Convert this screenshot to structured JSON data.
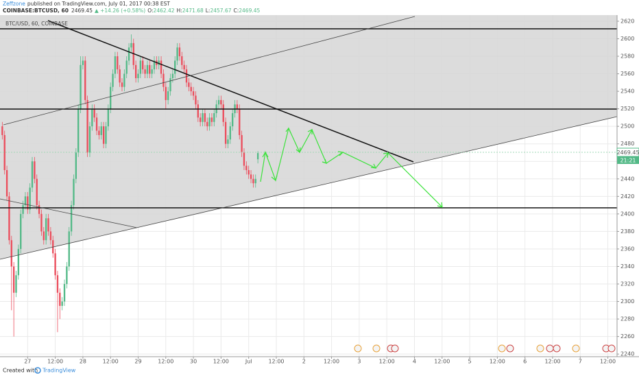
{
  "header": {
    "author": "Zeffzone",
    "published": "published on TradingView.com, July 01, 2017 00:38 EST",
    "symbol": "COINBASE:BTCUSD, 60",
    "last": "2469.45",
    "change": "▲ +14.26 (+0.58%)",
    "o_label": "O:",
    "o": "2462.42",
    "h_label": "H:",
    "h": "2471.68",
    "l_label": "L:",
    "l": "2457.67",
    "c_label": "C:",
    "c": "2469.45"
  },
  "legend": "BTC/USD, 60, COINBASE",
  "price_tag": "2469.45",
  "countdown": "21:21",
  "footer": {
    "created": "Created with",
    "brand": "TradingView"
  },
  "chart_data": {
    "type": "candlestick",
    "up_color": "#53b987",
    "down_color": "#eb4d5c",
    "xlim": [
      -12,
      256
    ],
    "ylim": [
      2237,
      2627
    ],
    "grid": true,
    "xticks": [
      {
        "value": 0,
        "label": "27"
      },
      {
        "value": 12,
        "label": "12:00"
      },
      {
        "value": 24,
        "label": "28"
      },
      {
        "value": 36,
        "label": "12:00"
      },
      {
        "value": 48,
        "label": "29"
      },
      {
        "value": 60,
        "label": "12:00"
      },
      {
        "value": 72,
        "label": "30"
      },
      {
        "value": 84,
        "label": "12:00"
      },
      {
        "value": 96,
        "label": "Jul"
      },
      {
        "value": 108,
        "label": "12:00"
      },
      {
        "value": 120,
        "label": "2"
      },
      {
        "value": 132,
        "label": "12:00"
      },
      {
        "value": 144,
        "label": "3"
      },
      {
        "value": 156,
        "label": "12:00"
      },
      {
        "value": 168,
        "label": "4"
      },
      {
        "value": 180,
        "label": "12:00"
      },
      {
        "value": 192,
        "label": "5"
      },
      {
        "value": 204,
        "label": "12:00"
      },
      {
        "value": 216,
        "label": "6"
      },
      {
        "value": 228,
        "label": "12:00"
      },
      {
        "value": 240,
        "label": "7"
      },
      {
        "value": 252,
        "label": "12:00"
      }
    ],
    "yticks": [
      2240,
      2260,
      2280,
      2300,
      2320,
      2340,
      2360,
      2380,
      2400,
      2420,
      2440,
      2460,
      2480,
      2500,
      2520,
      2540,
      2560,
      2580,
      2600,
      2620
    ],
    "x": [
      -11,
      -10,
      -9,
      -8,
      -7,
      -6,
      -5,
      -4,
      -3,
      -2,
      -1,
      0,
      1,
      2,
      3,
      4,
      5,
      6,
      7,
      8,
      9,
      10,
      11,
      12,
      13,
      14,
      15,
      16,
      17,
      18,
      19,
      20,
      21,
      22,
      23,
      24,
      25,
      26,
      27,
      28,
      29,
      30,
      31,
      32,
      33,
      34,
      35,
      36,
      37,
      38,
      39,
      40,
      41,
      42,
      43,
      44,
      45,
      46,
      47,
      48,
      49,
      50,
      51,
      52,
      53,
      54,
      55,
      56,
      57,
      58,
      59,
      60,
      61,
      62,
      63,
      64,
      65,
      66,
      67,
      68,
      69,
      70,
      71,
      72,
      73,
      74,
      75,
      76,
      77,
      78,
      79,
      80,
      81,
      82,
      83,
      84,
      85,
      86,
      87,
      88,
      89,
      90,
      91,
      92,
      93,
      94,
      95,
      96,
      97,
      98,
      99,
      100
    ],
    "open": [
      2500,
      2490,
      2450,
      2420,
      2370,
      2340,
      2310,
      2330,
      2360,
      2400,
      2410,
      2420,
      2405,
      2430,
      2460,
      2440,
      2410,
      2400,
      2380,
      2370,
      2395,
      2380,
      2370,
      2355,
      2330,
      2310,
      2295,
      2300,
      2320,
      2340,
      2380,
      2410,
      2440,
      2470,
      2520,
      2570,
      2575,
      2530,
      2470,
      2500,
      2520,
      2510,
      2495,
      2490,
      2500,
      2480,
      2500,
      2520,
      2545,
      2560,
      2580,
      2565,
      2550,
      2545,
      2560,
      2575,
      2590,
      2595,
      2570,
      2555,
      2560,
      2575,
      2565,
      2560,
      2570,
      2560,
      2565,
      2575,
      2570,
      2575,
      2560,
      2545,
      2530,
      2540,
      2555,
      2560,
      2575,
      2590,
      2580,
      2570,
      2565,
      2550,
      2545,
      2540,
      2535,
      2525,
      2510,
      2505,
      2515,
      2505,
      2500,
      2510,
      2505,
      2515,
      2525,
      2530,
      2525,
      2505,
      2480,
      2485,
      2500,
      2515,
      2525,
      2520,
      2490,
      2470,
      2455,
      2450,
      2445,
      2440,
      2435,
      2462.42
    ],
    "high": [
      2505,
      2495,
      2455,
      2425,
      2375,
      2345,
      2335,
      2365,
      2405,
      2415,
      2425,
      2425,
      2435,
      2465,
      2465,
      2445,
      2415,
      2405,
      2385,
      2400,
      2400,
      2385,
      2375,
      2360,
      2335,
      2315,
      2305,
      2325,
      2345,
      2385,
      2415,
      2445,
      2475,
      2525,
      2580,
      2580,
      2580,
      2535,
      2505,
      2525,
      2525,
      2515,
      2500,
      2505,
      2505,
      2505,
      2525,
      2550,
      2565,
      2585,
      2585,
      2570,
      2555,
      2565,
      2580,
      2595,
      2605,
      2600,
      2575,
      2565,
      2580,
      2580,
      2570,
      2575,
      2575,
      2570,
      2580,
      2580,
      2580,
      2580,
      2565,
      2550,
      2545,
      2560,
      2565,
      2580,
      2595,
      2595,
      2585,
      2575,
      2570,
      2555,
      2550,
      2545,
      2540,
      2530,
      2515,
      2520,
      2520,
      2510,
      2515,
      2515,
      2520,
      2530,
      2535,
      2535,
      2530,
      2510,
      2490,
      2505,
      2520,
      2530,
      2530,
      2525,
      2495,
      2475,
      2460,
      2455,
      2450,
      2445,
      2445,
      2471.68
    ],
    "low": [
      2485,
      2445,
      2415,
      2365,
      2290,
      2260,
      2305,
      2325,
      2355,
      2395,
      2405,
      2400,
      2400,
      2425,
      2435,
      2405,
      2395,
      2375,
      2365,
      2365,
      2375,
      2365,
      2350,
      2325,
      2265,
      2280,
      2290,
      2295,
      2315,
      2335,
      2375,
      2405,
      2435,
      2465,
      2515,
      2565,
      2525,
      2465,
      2465,
      2495,
      2505,
      2490,
      2485,
      2485,
      2475,
      2475,
      2495,
      2515,
      2540,
      2555,
      2560,
      2545,
      2540,
      2540,
      2555,
      2570,
      2585,
      2565,
      2550,
      2550,
      2555,
      2560,
      2555,
      2555,
      2555,
      2555,
      2560,
      2565,
      2565,
      2555,
      2540,
      2520,
      2525,
      2535,
      2550,
      2555,
      2570,
      2575,
      2565,
      2560,
      2545,
      2540,
      2535,
      2530,
      2520,
      2505,
      2500,
      2500,
      2500,
      2495,
      2495,
      2500,
      2500,
      2510,
      2520,
      2520,
      2500,
      2475,
      2475,
      2480,
      2495,
      2510,
      2515,
      2485,
      2465,
      2450,
      2445,
      2440,
      2435,
      2430,
      2430,
      2457.67
    ],
    "close": [
      2490,
      2450,
      2420,
      2370,
      2340,
      2310,
      2330,
      2360,
      2400,
      2410,
      2420,
      2405,
      2430,
      2460,
      2440,
      2410,
      2400,
      2380,
      2370,
      2395,
      2380,
      2370,
      2355,
      2330,
      2310,
      2295,
      2300,
      2320,
      2340,
      2380,
      2410,
      2440,
      2470,
      2520,
      2570,
      2575,
      2530,
      2470,
      2500,
      2520,
      2510,
      2495,
      2490,
      2500,
      2480,
      2500,
      2520,
      2545,
      2560,
      2580,
      2565,
      2550,
      2545,
      2560,
      2575,
      2590,
      2595,
      2570,
      2555,
      2560,
      2575,
      2565,
      2560,
      2570,
      2560,
      2565,
      2575,
      2570,
      2575,
      2560,
      2545,
      2530,
      2540,
      2555,
      2560,
      2575,
      2590,
      2580,
      2570,
      2565,
      2550,
      2545,
      2540,
      2535,
      2525,
      2510,
      2505,
      2515,
      2505,
      2500,
      2510,
      2505,
      2515,
      2525,
      2530,
      2525,
      2505,
      2480,
      2485,
      2500,
      2515,
      2525,
      2520,
      2490,
      2470,
      2455,
      2450,
      2445,
      2440,
      2435,
      2440,
      2469.45
    ]
  }
}
